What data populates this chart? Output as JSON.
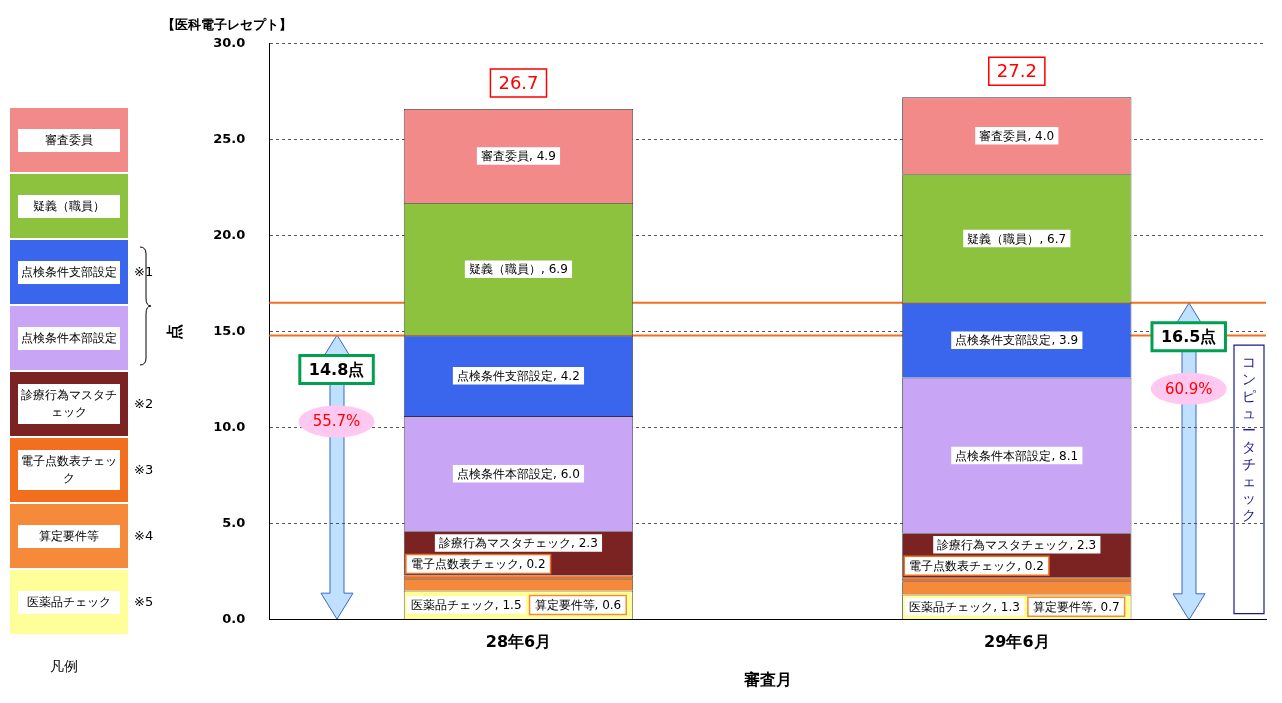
{
  "chart_data": {
    "type": "bar",
    "stacked": true,
    "title": "【医科電子レセプト】",
    "xlabel": "審査月",
    "ylabel": "点",
    "categories": [
      "28年6月",
      "29年6月"
    ],
    "series": [
      {
        "name": "医薬品チェック",
        "color": "#ffff99",
        "values": [
          1.5,
          1.3
        ],
        "value_labels": [
          "医薬品チェック, 1.5",
          "医薬品チェック, 1.3"
        ]
      },
      {
        "name": "算定要件等",
        "color": "#f58a3a",
        "values": [
          0.6,
          0.7
        ],
        "value_labels": [
          "算定要件等, 0.6",
          "算定要件等, 0.7"
        ]
      },
      {
        "name": "電子点数表チェック",
        "color": "#f26f1f",
        "values": [
          0.2,
          0.2
        ],
        "value_labels": [
          "電子点数表チェック, 0.2",
          "電子点数表チェック, 0.2"
        ]
      },
      {
        "name": "診療行為マスタチェック",
        "color": "#7b2323",
        "values": [
          2.3,
          2.3
        ],
        "value_labels": [
          "診療行為マスタチェック, 2.3",
          "診療行為マスタチェック, 2.3"
        ]
      },
      {
        "name": "点検条件本部設定",
        "color": "#c9a6f5",
        "values": [
          6.0,
          8.1
        ],
        "value_labels": [
          "点検条件本部設定, 6.0",
          "点検条件本部設定, 8.1"
        ]
      },
      {
        "name": "点検条件支部設定",
        "color": "#3a66ee",
        "values": [
          4.2,
          3.9
        ],
        "value_labels": [
          "点検条件支部設定, 4.2",
          "点検条件支部設定, 3.9"
        ]
      },
      {
        "name": "疑義（職員）",
        "color": "#8dc23f",
        "values": [
          6.9,
          6.7
        ],
        "value_labels": [
          "疑義（職員）, 6.9",
          "疑義（職員）, 6.7"
        ]
      },
      {
        "name": "審査委員",
        "color": "#f28a8a",
        "values": [
          4.9,
          4.0
        ],
        "value_labels": [
          "審査委員, 4.9",
          "審査委員, 4.0"
        ]
      }
    ],
    "totals": [
      "26.7",
      "27.2"
    ],
    "ylim": [
      0,
      30
    ],
    "yticks": [
      {
        "value": 0,
        "label": "0.0"
      },
      {
        "value": 5,
        "label": "5.0"
      },
      {
        "value": 10,
        "label": "10.0"
      },
      {
        "value": 15,
        "label": "15.0"
      },
      {
        "value": 20,
        "label": "20.0"
      },
      {
        "value": 25,
        "label": "25.0"
      },
      {
        "value": 30,
        "label": "30.0"
      }
    ],
    "grid": "y",
    "legend": "left",
    "ref_lines": [
      {
        "axis": "y",
        "value": 14.8,
        "label": "14.8点",
        "color": "#f07020"
      },
      {
        "axis": "y",
        "value": 16.5,
        "label": "16.5点",
        "color": "#f07020"
      }
    ],
    "annotations": [
      "55.7%",
      "60.9%",
      "コンピュータチェック",
      "※1",
      "※2",
      "※3",
      "※4",
      "※5",
      "凡例"
    ]
  }
}
